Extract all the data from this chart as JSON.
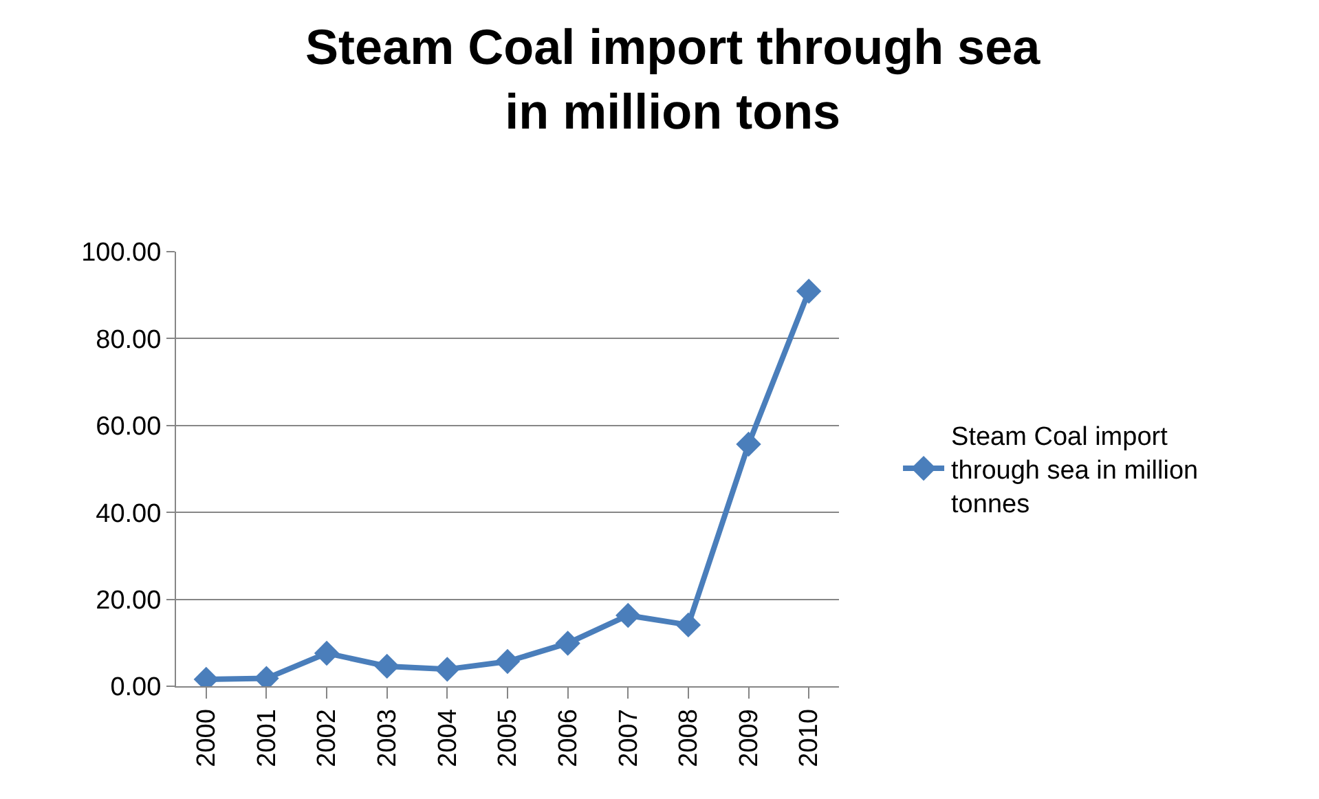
{
  "chart_data": {
    "type": "line",
    "title": "Steam Coal import through sea in million tons",
    "categories": [
      "2000",
      "2001",
      "2002",
      "2003",
      "2004",
      "2005",
      "2006",
      "2007",
      "2008",
      "2009",
      "2010"
    ],
    "series": [
      {
        "name": "Steam Coal import through sea in million tonnes",
        "color": "#4a7ebb",
        "values": [
          1.6,
          1.8,
          7.6,
          4.6,
          3.9,
          5.7,
          9.9,
          16.3,
          14.1,
          55.7,
          90.9
        ]
      }
    ],
    "ylim": [
      0,
      100
    ],
    "yticks": [
      {
        "value": 0,
        "label": "0.00"
      },
      {
        "value": 20,
        "label": "20.00"
      },
      {
        "value": 40,
        "label": "40.00"
      },
      {
        "value": 60,
        "label": "60.00"
      },
      {
        "value": 80,
        "label": "80.00"
      },
      {
        "value": 100,
        "label": "100.00"
      }
    ],
    "grid": "y",
    "legend": "right",
    "marker": "diamond",
    "line_style": "solid"
  }
}
